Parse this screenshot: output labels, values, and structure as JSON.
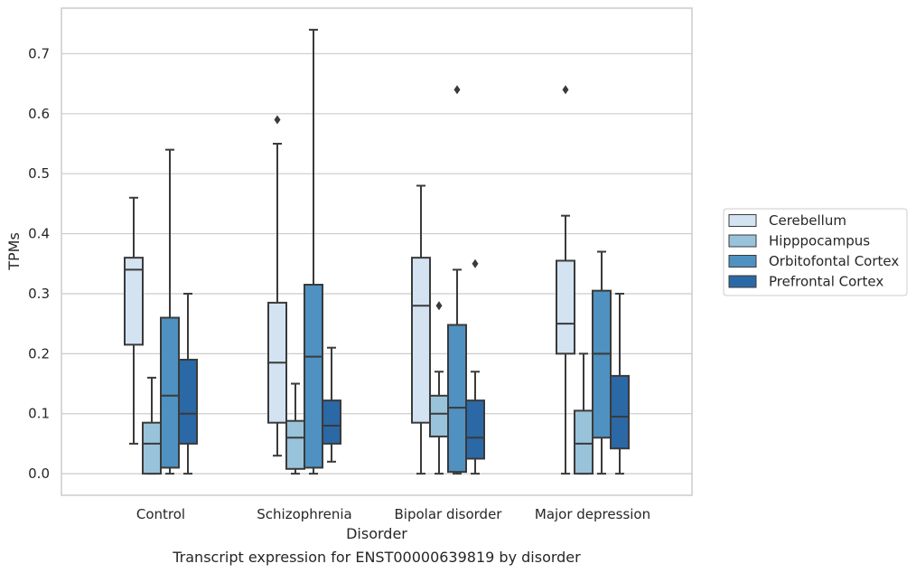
{
  "chart_data": {
    "type": "box",
    "caption": "Transcript expression for ENST00000639819 by disorder",
    "xlabel": "Disorder",
    "ylabel": "TPMs",
    "ylim": [
      -0.036,
      0.776
    ],
    "yticks": [
      "0.0",
      "0.1",
      "0.2",
      "0.3",
      "0.4",
      "0.5",
      "0.6",
      "0.7"
    ],
    "grid": "horizontal",
    "legend_position": "right",
    "categories": [
      "Control",
      "Schizophrenia",
      "Bipolar disorder",
      "Major depression"
    ],
    "series": [
      {
        "name": "Cerebellum",
        "color": "#d4e3f2",
        "boxes": [
          {
            "min": 0.05,
            "q1": 0.215,
            "median": 0.34,
            "q3": 0.36,
            "max": 0.46,
            "outliers": []
          },
          {
            "min": 0.03,
            "q1": 0.085,
            "median": 0.185,
            "q3": 0.285,
            "max": 0.55,
            "outliers": [
              0.59
            ]
          },
          {
            "min": 0.0,
            "q1": 0.085,
            "median": 0.28,
            "q3": 0.36,
            "max": 0.48,
            "outliers": []
          },
          {
            "min": 0.0,
            "q1": 0.2,
            "median": 0.25,
            "q3": 0.355,
            "max": 0.43,
            "outliers": [
              0.64
            ]
          }
        ]
      },
      {
        "name": "Hipppocampus",
        "color": "#99c3da",
        "boxes": [
          {
            "min": 0.0,
            "q1": 0.0,
            "median": 0.05,
            "q3": 0.085,
            "max": 0.16,
            "outliers": []
          },
          {
            "min": 0.0,
            "q1": 0.008,
            "median": 0.06,
            "q3": 0.088,
            "max": 0.15,
            "outliers": []
          },
          {
            "min": 0.0,
            "q1": 0.062,
            "median": 0.1,
            "q3": 0.13,
            "max": 0.17,
            "outliers": [
              0.28
            ]
          },
          {
            "min": 0.0,
            "q1": 0.0,
            "median": 0.05,
            "q3": 0.105,
            "max": 0.2,
            "outliers": []
          }
        ]
      },
      {
        "name": "Orbitofontal Cortex",
        "color": "#4f91c1",
        "boxes": [
          {
            "min": 0.0,
            "q1": 0.01,
            "median": 0.13,
            "q3": 0.26,
            "max": 0.54,
            "outliers": []
          },
          {
            "min": 0.0,
            "q1": 0.01,
            "median": 0.195,
            "q3": 0.315,
            "max": 0.74,
            "outliers": []
          },
          {
            "min": 0.0,
            "q1": 0.003,
            "median": 0.11,
            "q3": 0.248,
            "max": 0.34,
            "outliers": [
              0.64
            ]
          },
          {
            "min": 0.0,
            "q1": 0.06,
            "median": 0.2,
            "q3": 0.305,
            "max": 0.37,
            "outliers": []
          }
        ]
      },
      {
        "name": "Prefrontal Cortex",
        "color": "#2b68a6",
        "boxes": [
          {
            "min": 0.0,
            "q1": 0.05,
            "median": 0.1,
            "q3": 0.19,
            "max": 0.3,
            "outliers": []
          },
          {
            "min": 0.02,
            "q1": 0.05,
            "median": 0.08,
            "q3": 0.122,
            "max": 0.21,
            "outliers": []
          },
          {
            "min": 0.0,
            "q1": 0.025,
            "median": 0.06,
            "q3": 0.122,
            "max": 0.17,
            "outliers": [
              0.35
            ]
          },
          {
            "min": 0.0,
            "q1": 0.042,
            "median": 0.095,
            "q3": 0.163,
            "max": 0.3,
            "outliers": []
          }
        ]
      }
    ]
  }
}
